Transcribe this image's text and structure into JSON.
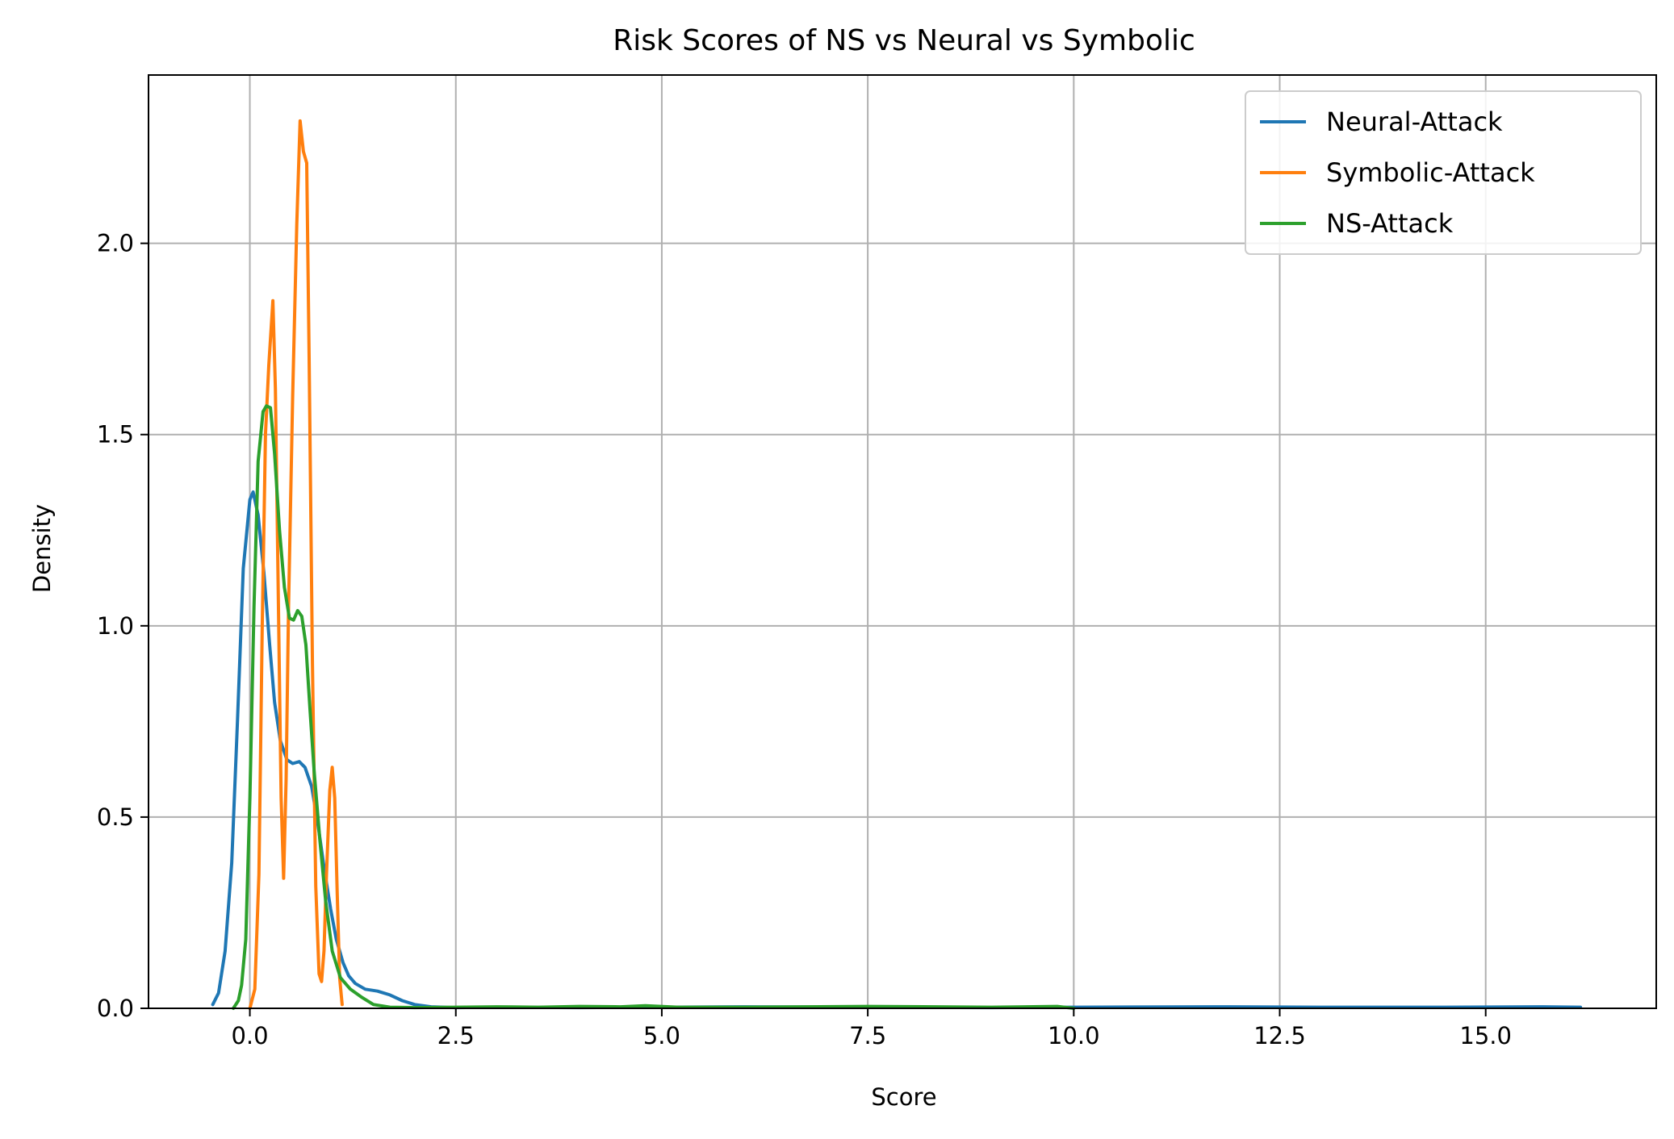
{
  "chart_data": {
    "type": "line",
    "title": "Risk Scores of NS vs Neural vs Symbolic",
    "xlabel": "Score",
    "ylabel": "Density",
    "xlim": [
      -1.23,
      17.07
    ],
    "ylim": [
      0,
      2.44
    ],
    "xticks": [
      0.0,
      2.5,
      5.0,
      7.5,
      10.0,
      12.5,
      15.0
    ],
    "xtick_labels": [
      "0.0",
      "2.5",
      "5.0",
      "7.5",
      "10.0",
      "12.5",
      "15.0"
    ],
    "yticks": [
      0.0,
      0.5,
      1.0,
      1.5,
      2.0
    ],
    "ytick_labels": [
      "0.0",
      "0.5",
      "1.0",
      "1.5",
      "2.0"
    ],
    "grid": true,
    "legend_position": "top-right",
    "series": [
      {
        "name": "Neural-Attack",
        "color": "#1f77b4",
        "points": [
          [
            -0.45,
            0.01
          ],
          [
            -0.38,
            0.04
          ],
          [
            -0.3,
            0.15
          ],
          [
            -0.22,
            0.38
          ],
          [
            -0.15,
            0.75
          ],
          [
            -0.08,
            1.15
          ],
          [
            0.0,
            1.33
          ],
          [
            0.04,
            1.35
          ],
          [
            0.1,
            1.29
          ],
          [
            0.17,
            1.14
          ],
          [
            0.24,
            0.95
          ],
          [
            0.3,
            0.8
          ],
          [
            0.37,
            0.7
          ],
          [
            0.45,
            0.65
          ],
          [
            0.52,
            0.64
          ],
          [
            0.6,
            0.645
          ],
          [
            0.67,
            0.63
          ],
          [
            0.75,
            0.58
          ],
          [
            0.82,
            0.49
          ],
          [
            0.9,
            0.37
          ],
          [
            0.98,
            0.26
          ],
          [
            1.05,
            0.18
          ],
          [
            1.13,
            0.12
          ],
          [
            1.2,
            0.085
          ],
          [
            1.28,
            0.065
          ],
          [
            1.4,
            0.05
          ],
          [
            1.55,
            0.045
          ],
          [
            1.7,
            0.035
          ],
          [
            1.85,
            0.02
          ],
          [
            2.0,
            0.01
          ],
          [
            2.2,
            0.004
          ],
          [
            2.5,
            0.002
          ],
          [
            3.0,
            0.003
          ],
          [
            4.0,
            0.002
          ],
          [
            5.0,
            0.003
          ],
          [
            6.0,
            0.004
          ],
          [
            7.5,
            0.003
          ],
          [
            9.0,
            0.002
          ],
          [
            10.0,
            0.003
          ],
          [
            11.7,
            0.004
          ],
          [
            13.0,
            0.003
          ],
          [
            14.5,
            0.003
          ],
          [
            15.7,
            0.004
          ],
          [
            16.15,
            0.003
          ]
        ]
      },
      {
        "name": "Symbolic-Attack",
        "color": "#ff7f0e",
        "points": [
          [
            0.0,
            0.0
          ],
          [
            0.06,
            0.05
          ],
          [
            0.11,
            0.35
          ],
          [
            0.15,
            1.0
          ],
          [
            0.19,
            1.5
          ],
          [
            0.23,
            1.68
          ],
          [
            0.28,
            1.85
          ],
          [
            0.31,
            1.62
          ],
          [
            0.35,
            1.0
          ],
          [
            0.38,
            0.55
          ],
          [
            0.41,
            0.34
          ],
          [
            0.44,
            0.6
          ],
          [
            0.47,
            1.05
          ],
          [
            0.52,
            1.6
          ],
          [
            0.57,
            2.05
          ],
          [
            0.61,
            2.32
          ],
          [
            0.65,
            2.24
          ],
          [
            0.69,
            2.21
          ],
          [
            0.72,
            1.7
          ],
          [
            0.76,
            0.9
          ],
          [
            0.8,
            0.32
          ],
          [
            0.84,
            0.09
          ],
          [
            0.87,
            0.07
          ],
          [
            0.9,
            0.15
          ],
          [
            0.93,
            0.35
          ],
          [
            0.97,
            0.57
          ],
          [
            1.0,
            0.63
          ],
          [
            1.03,
            0.55
          ],
          [
            1.06,
            0.3
          ],
          [
            1.09,
            0.08
          ],
          [
            1.12,
            0.01
          ]
        ]
      },
      {
        "name": "NS-Attack",
        "color": "#2ca02c",
        "points": [
          [
            -0.2,
            0.0
          ],
          [
            -0.14,
            0.02
          ],
          [
            -0.1,
            0.06
          ],
          [
            -0.05,
            0.18
          ],
          [
            0.0,
            0.55
          ],
          [
            0.05,
            1.05
          ],
          [
            0.1,
            1.43
          ],
          [
            0.16,
            1.56
          ],
          [
            0.2,
            1.575
          ],
          [
            0.25,
            1.57
          ],
          [
            0.3,
            1.45
          ],
          [
            0.36,
            1.25
          ],
          [
            0.42,
            1.1
          ],
          [
            0.48,
            1.02
          ],
          [
            0.53,
            1.015
          ],
          [
            0.58,
            1.04
          ],
          [
            0.63,
            1.025
          ],
          [
            0.68,
            0.95
          ],
          [
            0.73,
            0.78
          ],
          [
            0.78,
            0.62
          ],
          [
            0.85,
            0.44
          ],
          [
            0.92,
            0.28
          ],
          [
            1.0,
            0.15
          ],
          [
            1.1,
            0.08
          ],
          [
            1.22,
            0.05
          ],
          [
            1.35,
            0.03
          ],
          [
            1.5,
            0.01
          ],
          [
            1.7,
            0.003
          ],
          [
            2.0,
            0.002
          ],
          [
            3.0,
            0.004
          ],
          [
            3.5,
            0.003
          ],
          [
            4.0,
            0.005
          ],
          [
            4.5,
            0.004
          ],
          [
            4.8,
            0.007
          ],
          [
            5.2,
            0.003
          ],
          [
            6.0,
            0.003
          ],
          [
            7.5,
            0.005
          ],
          [
            9.0,
            0.003
          ],
          [
            9.8,
            0.005
          ],
          [
            10.0,
            0.0
          ]
        ]
      }
    ]
  }
}
